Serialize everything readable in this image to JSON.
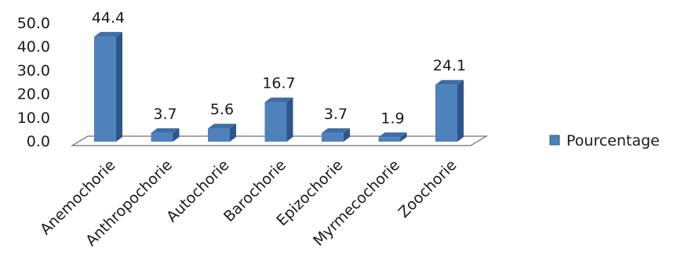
{
  "chart_data": {
    "type": "bar",
    "categories": [
      "Anemochorie",
      "Anthropochorie",
      "Autochorie",
      "Barochorie",
      "Epizochorie",
      "Myrmecochorie",
      "Zoochorie"
    ],
    "series": [
      {
        "name": "Pourcentage",
        "values": [
          44.4,
          3.7,
          5.6,
          16.7,
          3.7,
          1.9,
          24.1
        ]
      }
    ],
    "data_labels": [
      "44.4",
      "3.7",
      "5.6",
      "16.7",
      "3.7",
      "1.9",
      "24.1"
    ],
    "y_ticks": [
      "0.0",
      "10.0",
      "20.0",
      "30.0",
      "40.0",
      "50.0"
    ],
    "ylim": [
      0,
      50
    ],
    "style": "3d-column",
    "grid": false,
    "legend_position": "right",
    "colors": {
      "bar_front": "#4f81bd",
      "bar_side": "#2e5589",
      "bar_top": "#3f6ea6",
      "floor": "#6f6f6f",
      "text": "#1a1a1a"
    }
  }
}
